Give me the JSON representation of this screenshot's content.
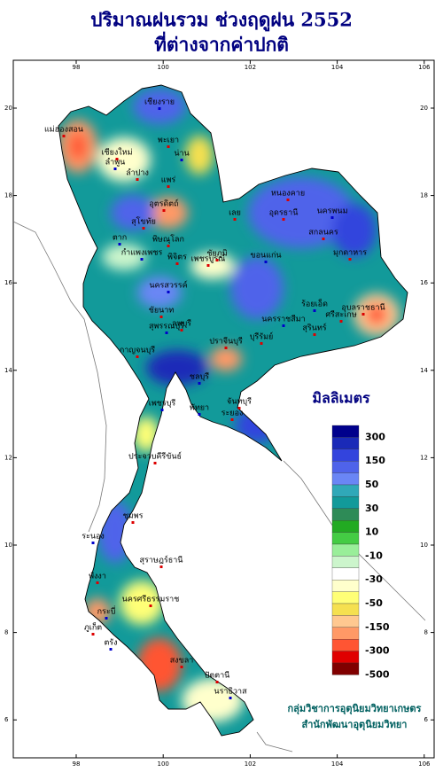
{
  "map_data": {
    "title": [
      "ปริมาณฝนรวม ช่วงฤดูฝน 2552",
      "ที่ต่างจากค่าปกติ"
    ],
    "lon_ticks": [
      98,
      100,
      102,
      104,
      106
    ],
    "lat_ticks": [
      6,
      8,
      10,
      12,
      14,
      16,
      18,
      20
    ],
    "provinces": [
      "เชียงราย",
      "เชียงใหม่",
      "แม่ฮ่องสอน",
      "ลำพูน",
      "ลำปาง",
      "พะเยา",
      "น่าน",
      "แพร่",
      "อุตรดิตถ์",
      "ตาก",
      "สุโขทัย",
      "พิษณุโลก",
      "กำแพงเพชร",
      "พิจิตร",
      "เพชรบูรณ์",
      "นครสวรรค์",
      "ลพบุรี",
      "ชัยนาท",
      "สุพรรณบุรี",
      "กาญจนบุรี",
      "ปราจีนบุรี",
      "เพชรบุรี",
      "ประจวบคีรีขันธ์",
      "ชุมพร",
      "ระนอง",
      "สุราษฎร์ธานี",
      "นครศรีธรรมราช",
      "กระบี่",
      "พังงา",
      "ภูเก็ต",
      "ตรัง",
      "สงขลา",
      "ปัตตานี",
      "นราธิวาส",
      "หนองคาย",
      "อุดรธานี",
      "นครพนม",
      "สกลนคร",
      "มุกดาหาร",
      "ขอนแก่น",
      "เลย",
      "ชัยภูมิ",
      "นครราชสีมา",
      "บุรีรัมย์",
      "สุรินทร์",
      "ร้อยเอ็ด",
      "อุบลราชธานี",
      "ศรีสะเกษ",
      "ชลบุรี",
      "ระยอง",
      "จันทบุรี",
      "พัทยา"
    ],
    "legend": {
      "title": "มิลลิเมตร",
      "levels": [
        300,
        150,
        50,
        30,
        10,
        -10,
        -30,
        -50,
        -150,
        -300,
        -500
      ],
      "colors": [
        "#00008c",
        "#1a2ab8",
        "#3344dd",
        "#4f63ea",
        "#6a86f5",
        "#30a8b8",
        "#129a9a",
        "#2e8b57",
        "#22aa22",
        "#44cc44",
        "#99ee99",
        "#ccf5cc",
        "#ffffff",
        "#ffffcc",
        "#ffff77",
        "#f5e050",
        "#ffc890",
        "#ff9966",
        "#ff5533",
        "#e00000",
        "#800000"
      ]
    },
    "credits": [
      "กลุ่มวิชาการอุตุนิยมวิทยาเกษตร",
      "สำนักพัฒนาอุตุนิยมวิทยา"
    ]
  }
}
